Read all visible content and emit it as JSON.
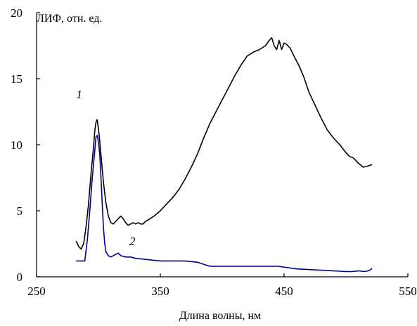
{
  "chart_data": {
    "type": "line",
    "ylabel": "ЛИФ, отн. ед.",
    "xlabel": "Длина волны, нм",
    "xlim": [
      250,
      550
    ],
    "ylim": [
      0,
      20
    ],
    "x_ticks": [
      250,
      350,
      450,
      550
    ],
    "y_ticks": [
      0,
      5,
      10,
      15,
      20
    ],
    "grid": false,
    "series": [
      {
        "name": "1",
        "color": "#000000",
        "label_at": [
          282,
          13.5
        ],
        "x": [
          282,
          284,
          286,
          288,
          290,
          292,
          294,
          296,
          297,
          298,
          299,
          300,
          301,
          302,
          303,
          304,
          306,
          308,
          310,
          312,
          314,
          316,
          318,
          320,
          322,
          324,
          326,
          328,
          330,
          332,
          334,
          336,
          338,
          340,
          345,
          350,
          355,
          360,
          365,
          370,
          375,
          380,
          385,
          390,
          395,
          400,
          405,
          410,
          415,
          420,
          425,
          430,
          435,
          438,
          440,
          442,
          444,
          446,
          448,
          450,
          452,
          455,
          458,
          462,
          466,
          470,
          475,
          480,
          485,
          490,
          495,
          500,
          503,
          506,
          510,
          514,
          518,
          521
        ],
        "values": [
          2.7,
          2.3,
          2.1,
          2.5,
          3.8,
          5.5,
          7.8,
          9.8,
          11.0,
          11.7,
          11.9,
          11.2,
          10.3,
          9.3,
          8.2,
          7.2,
          5.6,
          4.6,
          4.1,
          4.0,
          4.2,
          4.4,
          4.6,
          4.4,
          4.1,
          3.9,
          4.0,
          4.1,
          4.0,
          4.1,
          4.0,
          4.0,
          4.2,
          4.3,
          4.6,
          5.0,
          5.5,
          6.0,
          6.6,
          7.4,
          8.3,
          9.3,
          10.5,
          11.6,
          12.5,
          13.4,
          14.3,
          15.2,
          16.0,
          16.7,
          17.0,
          17.2,
          17.5,
          17.9,
          18.1,
          17.5,
          17.2,
          17.9,
          17.2,
          17.7,
          17.6,
          17.3,
          16.7,
          16.0,
          15.1,
          14.0,
          13.0,
          12.0,
          11.1,
          10.5,
          10.0,
          9.4,
          9.1,
          9.0,
          8.6,
          8.3,
          8.4,
          8.5
        ]
      },
      {
        "name": "2",
        "color": "#00008b",
        "label_at": [
          325,
          2.4
        ],
        "x": [
          282,
          286,
          289,
          291,
          293,
          295,
          297,
          298,
          299,
          300,
          301,
          302,
          303,
          304,
          305,
          306,
          308,
          310,
          312,
          314,
          316,
          318,
          322,
          326,
          330,
          340,
          350,
          360,
          370,
          380,
          390,
          400,
          420,
          440,
          445,
          460,
          480,
          500,
          505,
          510,
          515,
          518,
          520,
          521
        ],
        "values": [
          1.2,
          1.2,
          1.2,
          2.8,
          5.0,
          7.5,
          9.5,
          10.6,
          10.7,
          10.2,
          9.3,
          7.6,
          5.6,
          3.8,
          2.6,
          1.9,
          1.6,
          1.5,
          1.6,
          1.7,
          1.8,
          1.6,
          1.5,
          1.5,
          1.4,
          1.3,
          1.2,
          1.2,
          1.2,
          1.1,
          0.8,
          0.8,
          0.8,
          0.8,
          0.8,
          0.6,
          0.5,
          0.4,
          0.4,
          0.45,
          0.4,
          0.45,
          0.55,
          0.65
        ]
      }
    ]
  }
}
